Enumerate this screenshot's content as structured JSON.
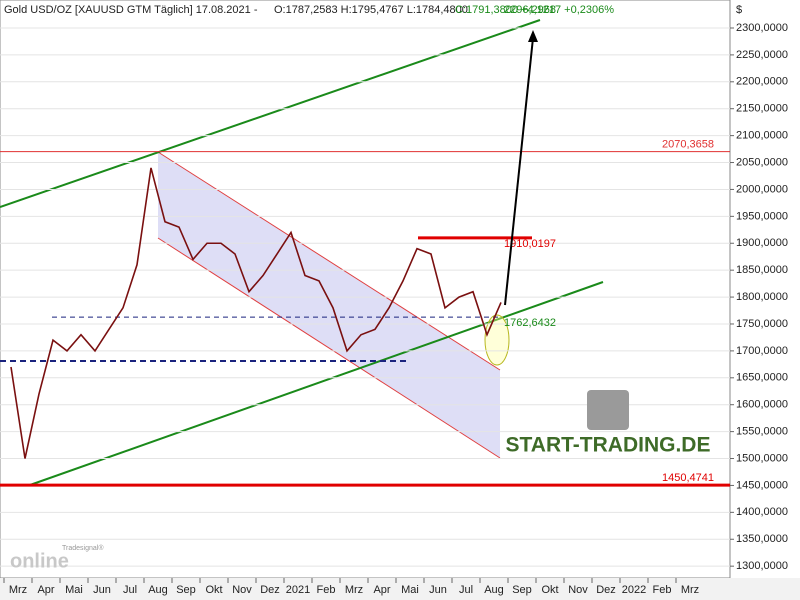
{
  "chart_data": {
    "type": "line",
    "header": {
      "symbol": "Gold USD/OZ [XAUUSD GTM  Täglich] 17.08.2021 -",
      "ohlc": "O:1787,2583 H:1795,4767 L:1784,4800",
      "change": "C:1791,3800 +4,1217 +0,2306%"
    },
    "currency": "$",
    "categories": [
      "Mrz",
      null,
      "Apr",
      null,
      "Mai",
      null,
      "Jun",
      null,
      "Jul",
      null,
      "Aug",
      null,
      "Sep",
      null,
      "Okt",
      null,
      "Nov",
      null,
      "Dez",
      null,
      "2021",
      null,
      "Feb",
      null,
      "Mrz",
      null,
      "Apr",
      null,
      "Mai",
      null,
      "Jun",
      null,
      "Jul",
      null,
      "Aug",
      null,
      "Sep",
      null,
      "Okt",
      null,
      "Nov",
      null,
      "Dez",
      null,
      "2022",
      null,
      "Feb",
      null,
      "Mrz",
      null
    ],
    "series": [
      {
        "name": "Gold USD/OZ",
        "color": "#7a1010",
        "values": [
          1670,
          1500,
          1620,
          1720,
          1700,
          1730,
          1700,
          1740,
          1780,
          1860,
          2040,
          1940,
          1930,
          1870,
          1900,
          1900,
          1880,
          1810,
          1840,
          1880,
          1920,
          1840,
          1830,
          1780,
          1700,
          1730,
          1740,
          1780,
          1830,
          1890,
          1880,
          1780,
          1800,
          1810,
          1730,
          1790,
          null,
          null,
          null,
          null,
          null,
          null,
          null,
          null,
          null,
          null,
          null,
          null,
          null,
          null
        ]
      }
    ],
    "ylim": [
      1278,
      2352
    ],
    "yticks": [
      {
        "value": 1300,
        "label": "1300,0000"
      },
      {
        "value": 1350,
        "label": "1350,0000"
      },
      {
        "value": 1400,
        "label": "1400,0000"
      },
      {
        "value": 1450,
        "label": "1450,0000"
      },
      {
        "value": 1500,
        "label": "1500,0000"
      },
      {
        "value": 1550,
        "label": "1550,0000"
      },
      {
        "value": 1600,
        "label": "1600,0000"
      },
      {
        "value": 1650,
        "label": "1650,0000"
      },
      {
        "value": 1700,
        "label": "1700,0000"
      },
      {
        "value": 1750,
        "label": "1750,0000"
      },
      {
        "value": 1800,
        "label": "1800,0000"
      },
      {
        "value": 1850,
        "label": "1850,0000"
      },
      {
        "value": 1900,
        "label": "1900,0000"
      },
      {
        "value": 1950,
        "label": "1950,0000"
      },
      {
        "value": 2000,
        "label": "2000,0000"
      },
      {
        "value": 2050,
        "label": "2050,0000"
      },
      {
        "value": 2100,
        "label": "2100,0000"
      },
      {
        "value": 2150,
        "label": "2150,0000"
      },
      {
        "value": 2200,
        "label": "2200,0000"
      },
      {
        "value": 2250,
        "label": "2250,0000"
      },
      {
        "value": 2300,
        "label": "2300,0000"
      }
    ],
    "grid": true,
    "levels": [
      {
        "value": 2070.3658,
        "label": "2070,3658",
        "color": "#e03030"
      },
      {
        "value": 1450.4741,
        "label": "1450,4741",
        "color": "#e00000"
      }
    ],
    "resistance": {
      "value": 1910.0197,
      "label": "1910,0197",
      "color": "#e00000"
    },
    "support": {
      "value": 1762.6432,
      "label": "1762,6432",
      "color": "#1a237e"
    },
    "target": {
      "value": 2296.2968,
      "label": "2296,2968",
      "color": "#1a8a1a"
    },
    "watermarks": {
      "brand": "START-TRADING.DE",
      "platform_top": "Tradesignal®",
      "platform": "online"
    }
  }
}
